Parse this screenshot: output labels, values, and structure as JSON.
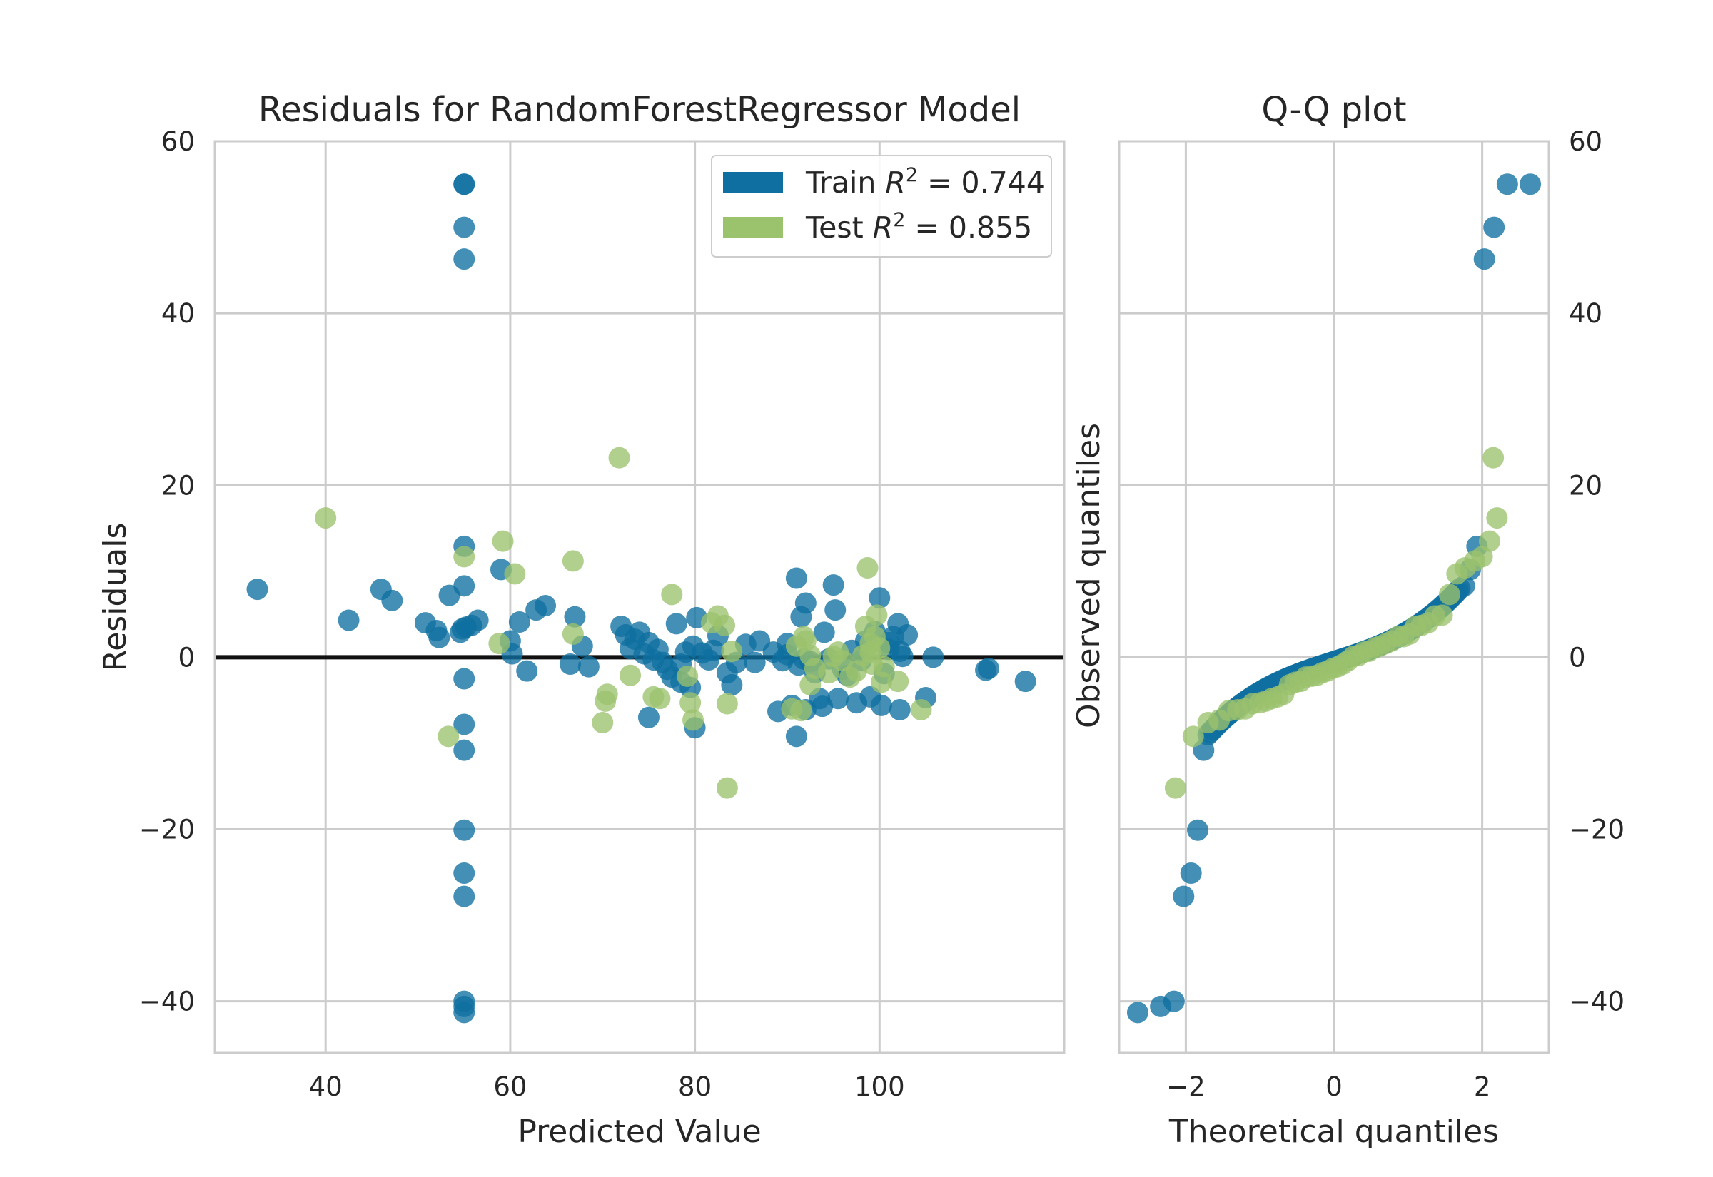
{
  "chart_data": [
    {
      "type": "scatter",
      "title": "Residuals for RandomForestRegressor Model",
      "xlabel": "Predicted Value",
      "ylabel": "Residuals",
      "xlim": [
        28,
        120
      ],
      "ylim": [
        -46,
        60
      ],
      "x_ticks": [
        40,
        60,
        80,
        100
      ],
      "y_ticks": [
        -40,
        -20,
        0,
        20,
        40,
        60
      ],
      "x_tick_labels": [
        "40",
        "60",
        "80",
        "100"
      ],
      "y_tick_labels": [
        "−40",
        "−20",
        "0",
        "20",
        "40",
        "60"
      ],
      "grid": true,
      "legend_position": "upper right",
      "zero_line": 0,
      "series": [
        {
          "name": "Train",
          "r2_label_prefix": "Train ",
          "r2_value": "0.744",
          "color": "#0e6fa0",
          "points": [
            [
              32.6,
              7.9
            ],
            [
              42.5,
              4.3
            ],
            [
              46.0,
              7.9
            ],
            [
              47.2,
              6.6
            ],
            [
              50.8,
              4.0
            ],
            [
              52.0,
              3.1
            ],
            [
              52.3,
              2.3
            ],
            [
              53.4,
              7.2
            ],
            [
              54.6,
              2.9
            ],
            [
              54.8,
              3.3
            ],
            [
              55.2,
              3.5
            ],
            [
              55.8,
              3.7
            ],
            [
              56.5,
              4.3
            ],
            [
              55.0,
              55.0
            ],
            [
              55.0,
              55.0
            ],
            [
              55.0,
              50.0
            ],
            [
              55.0,
              46.3
            ],
            [
              55.0,
              12.9
            ],
            [
              55.0,
              8.3
            ],
            [
              55.0,
              -2.5
            ],
            [
              55.0,
              -7.8
            ],
            [
              55.0,
              -10.8
            ],
            [
              55.0,
              -20.1
            ],
            [
              55.0,
              -25.1
            ],
            [
              55.0,
              -27.8
            ],
            [
              55.0,
              -40.0
            ],
            [
              55.0,
              -40.6
            ],
            [
              55.0,
              -41.3
            ],
            [
              59.0,
              10.2
            ],
            [
              60.0,
              1.9
            ],
            [
              60.2,
              0.4
            ],
            [
              61.0,
              4.1
            ],
            [
              61.8,
              -1.6
            ],
            [
              62.8,
              5.5
            ],
            [
              63.8,
              6.0
            ],
            [
              66.5,
              -0.8
            ],
            [
              67.0,
              4.7
            ],
            [
              67.8,
              1.3
            ],
            [
              68.5,
              -1.1
            ],
            [
              72.0,
              3.6
            ],
            [
              72.5,
              2.6
            ],
            [
              73.0,
              1.0
            ],
            [
              73.5,
              2.1
            ],
            [
              74.0,
              2.9
            ],
            [
              74.5,
              0.4
            ],
            [
              75.0,
              1.7
            ],
            [
              75.5,
              -0.3
            ],
            [
              76.0,
              0.9
            ],
            [
              76.5,
              -0.6
            ],
            [
              77.0,
              -1.4
            ],
            [
              77.5,
              -2.3
            ],
            [
              78.0,
              3.9
            ],
            [
              78.5,
              -0.8
            ],
            [
              79.0,
              0.6
            ],
            [
              79.5,
              -3.5
            ],
            [
              79.8,
              1.3
            ],
            [
              80.0,
              -8.2
            ],
            [
              80.2,
              4.6
            ],
            [
              80.8,
              0.5
            ],
            [
              81.5,
              -0.3
            ],
            [
              82.0,
              0.8
            ],
            [
              82.5,
              2.5
            ],
            [
              83.5,
              -1.8
            ],
            [
              84.0,
              -3.2
            ],
            [
              84.5,
              -0.6
            ],
            [
              85.5,
              1.5
            ],
            [
              86.5,
              -0.6
            ],
            [
              87.0,
              1.9
            ],
            [
              75.0,
              -7.0
            ],
            [
              78.5,
              -2.9
            ],
            [
              88.5,
              0.6
            ],
            [
              89.0,
              -6.3
            ],
            [
              89.5,
              -0.4
            ],
            [
              90.0,
              0.3
            ],
            [
              90.5,
              -5.6
            ],
            [
              91.0,
              9.2
            ],
            [
              91.0,
              -9.2
            ],
            [
              91.2,
              -0.9
            ],
            [
              91.5,
              4.7
            ],
            [
              91.8,
              -0.2
            ],
            [
              92.0,
              6.3
            ],
            [
              92.5,
              -0.5
            ],
            [
              93.0,
              -1.8
            ],
            [
              93.5,
              -4.8
            ],
            [
              93.8,
              -5.7
            ],
            [
              94.0,
              2.9
            ],
            [
              94.5,
              -0.2
            ],
            [
              95.0,
              8.4
            ],
            [
              95.2,
              5.5
            ],
            [
              95.5,
              -4.8
            ],
            [
              96.0,
              -1.4
            ],
            [
              96.5,
              -2.1
            ],
            [
              97.0,
              0.8
            ],
            [
              97.5,
              -5.3
            ],
            [
              98.0,
              -0.4
            ],
            [
              98.5,
              1.9
            ],
            [
              99.0,
              -4.6
            ],
            [
              100.0,
              6.9
            ],
            [
              100.2,
              -5.6
            ],
            [
              100.5,
              -1.9
            ],
            [
              101.0,
              0.9
            ],
            [
              101.5,
              2.4
            ],
            [
              102.0,
              3.9
            ],
            [
              102.2,
              -6.1
            ],
            [
              102.5,
              0.1
            ],
            [
              103.0,
              2.6
            ],
            [
              105.0,
              -4.7
            ],
            [
              105.8,
              0.0
            ],
            [
              111.5,
              -1.5
            ],
            [
              111.8,
              -1.3
            ],
            [
              115.8,
              -2.8
            ],
            [
              99.5,
              3.0
            ],
            [
              101.0,
              1.7
            ],
            [
              102.2,
              0.7
            ],
            [
              92.0,
              -6.1
            ],
            [
              90.0,
              1.6
            ]
          ]
        },
        {
          "name": "Test",
          "r2_label_prefix": "Test ",
          "r2_value": "0.855",
          "color": "#9bc26d",
          "points": [
            [
              40.0,
              16.2
            ],
            [
              53.3,
              -9.2
            ],
            [
              55.0,
              11.7
            ],
            [
              58.8,
              1.6
            ],
            [
              59.2,
              13.5
            ],
            [
              60.5,
              9.7
            ],
            [
              66.8,
              11.2
            ],
            [
              66.8,
              2.7
            ],
            [
              70.0,
              -7.6
            ],
            [
              70.3,
              -5.1
            ],
            [
              70.5,
              -4.3
            ],
            [
              71.8,
              23.2
            ],
            [
              73.0,
              -2.1
            ],
            [
              75.5,
              -4.6
            ],
            [
              76.2,
              -4.8
            ],
            [
              77.5,
              7.3
            ],
            [
              79.2,
              -2.2
            ],
            [
              79.5,
              -5.3
            ],
            [
              79.8,
              -7.3
            ],
            [
              81.8,
              4.0
            ],
            [
              82.5,
              4.8
            ],
            [
              83.2,
              3.7
            ],
            [
              83.5,
              -15.2
            ],
            [
              83.5,
              -5.4
            ],
            [
              84.0,
              0.7
            ],
            [
              90.5,
              -6.0
            ],
            [
              91.0,
              1.3
            ],
            [
              91.5,
              -6.2
            ],
            [
              91.8,
              2.4
            ],
            [
              92.0,
              1.9
            ],
            [
              92.5,
              -3.2
            ],
            [
              93.0,
              -1.3
            ],
            [
              94.5,
              -1.8
            ],
            [
              95.0,
              0.1
            ],
            [
              95.5,
              0.6
            ],
            [
              96.0,
              -0.4
            ],
            [
              96.8,
              -2.3
            ],
            [
              97.5,
              -1.6
            ],
            [
              98.2,
              0.2
            ],
            [
              98.5,
              3.6
            ],
            [
              98.7,
              10.4
            ],
            [
              99.0,
              1.6
            ],
            [
              99.2,
              -0.8
            ],
            [
              99.5,
              2.4
            ],
            [
              99.7,
              4.9
            ],
            [
              100.0,
              1.1
            ],
            [
              100.2,
              -2.9
            ],
            [
              100.5,
              -1.1
            ],
            [
              102.0,
              -2.8
            ],
            [
              104.5,
              -6.1
            ],
            [
              99.0,
              0.6
            ],
            [
              92.5,
              0.2
            ]
          ]
        }
      ]
    },
    {
      "type": "scatter",
      "title": "Q-Q plot",
      "xlabel": "Theoretical quantiles",
      "ylabel": "Observed quantiles",
      "xlim": [
        -2.9,
        2.9
      ],
      "ylim": [
        -46,
        60
      ],
      "x_ticks": [
        -2,
        0,
        2
      ],
      "y_ticks": [
        -40,
        -20,
        0,
        20,
        40,
        60
      ],
      "x_tick_labels": [
        "−2",
        "0",
        "2"
      ],
      "y_tick_labels": [
        "−40",
        "−20",
        "0",
        "20",
        "40",
        "60"
      ],
      "grid": true,
      "series": [
        {
          "name": "Train",
          "color": "#0e6fa0",
          "points": [
            [
              -2.65,
              -41.3
            ],
            [
              -2.34,
              -40.6
            ],
            [
              -2.16,
              -40.0
            ],
            [
              -2.03,
              -27.8
            ],
            [
              -1.93,
              -25.1
            ],
            [
              -1.84,
              -20.1
            ],
            [
              -1.76,
              -10.8
            ],
            [
              1.76,
              8.3
            ],
            [
              1.84,
              10.2
            ],
            [
              1.93,
              12.9
            ],
            [
              2.03,
              46.3
            ],
            [
              2.16,
              50.0
            ],
            [
              2.34,
              55.0
            ],
            [
              2.65,
              55.0
            ]
          ],
          "band": {
            "x_from": -1.7,
            "x_to": 1.7,
            "y_from": -9.0,
            "y_to": 8.0,
            "n": 120
          }
        },
        {
          "name": "Test",
          "color": "#9bc26d",
          "points": [
            [
              -2.14,
              -15.2
            ],
            [
              -1.9,
              -9.2
            ],
            [
              -1.7,
              -7.6
            ],
            [
              -1.55,
              -7.3
            ],
            [
              -1.42,
              -6.2
            ],
            [
              -1.3,
              -6.1
            ],
            [
              -1.2,
              -6.0
            ],
            [
              -1.1,
              -5.4
            ],
            [
              -1.0,
              -5.3
            ],
            [
              -0.92,
              -5.1
            ],
            [
              -0.84,
              -4.8
            ],
            [
              -0.76,
              -4.6
            ],
            [
              -0.68,
              -4.3
            ],
            [
              -0.6,
              -3.2
            ],
            [
              -0.52,
              -2.9
            ],
            [
              -0.45,
              -2.8
            ],
            [
              -0.38,
              -2.3
            ],
            [
              -0.3,
              -2.2
            ],
            [
              -0.23,
              -2.1
            ],
            [
              -0.16,
              -1.8
            ],
            [
              -0.09,
              -1.6
            ],
            [
              -0.02,
              -1.3
            ],
            [
              0.05,
              -1.1
            ],
            [
              0.12,
              -0.8
            ],
            [
              0.19,
              -0.4
            ],
            [
              0.26,
              0.1
            ],
            [
              0.33,
              0.2
            ],
            [
              0.4,
              0.6
            ],
            [
              0.47,
              0.7
            ],
            [
              0.55,
              1.1
            ],
            [
              0.62,
              1.3
            ],
            [
              0.7,
              1.6
            ],
            [
              0.78,
              1.9
            ],
            [
              0.86,
              2.4
            ],
            [
              0.94,
              2.4
            ],
            [
              1.02,
              2.7
            ],
            [
              1.1,
              3.6
            ],
            [
              1.18,
              3.7
            ],
            [
              1.27,
              4.0
            ],
            [
              1.36,
              4.8
            ],
            [
              1.46,
              4.9
            ],
            [
              1.56,
              7.3
            ],
            [
              1.66,
              9.7
            ],
            [
              1.77,
              10.4
            ],
            [
              1.9,
              11.2
            ],
            [
              2.0,
              11.7
            ],
            [
              2.1,
              13.5
            ],
            [
              2.2,
              16.2
            ],
            [
              2.15,
              23.2
            ]
          ]
        }
      ]
    }
  ]
}
